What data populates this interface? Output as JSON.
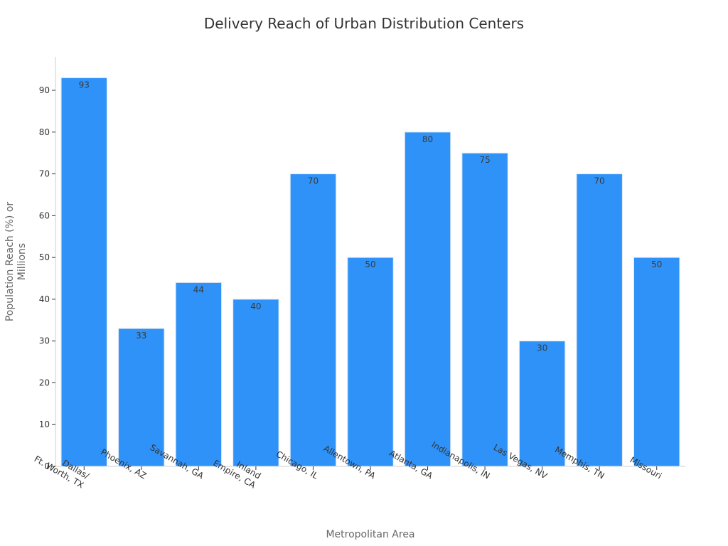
{
  "chart_data": {
    "type": "bar",
    "title": "Delivery Reach of Urban Distribution Centers",
    "xlabel": "Metropolitan Area",
    "ylabel_lines": [
      "Population Reach (%) or",
      "Millions"
    ],
    "categories": [
      [
        "Dallas/",
        "Ft. Worth, TX"
      ],
      [
        "Phoenix, AZ"
      ],
      [
        "Savannah, GA"
      ],
      [
        "Inland",
        "Empire, CA"
      ],
      [
        "Chicago, IL"
      ],
      [
        "Allentown, PA"
      ],
      [
        "Atlanta, GA"
      ],
      [
        "Indianapolis, IN"
      ],
      [
        "Las Vegas, NV"
      ],
      [
        "Memphis, TN"
      ],
      [
        "Missouri"
      ]
    ],
    "values": [
      93,
      33,
      44,
      40,
      70,
      50,
      80,
      75,
      30,
      70,
      50
    ],
    "ylim": [
      0,
      98
    ],
    "yticks": [
      0,
      10,
      20,
      30,
      40,
      50,
      60,
      70,
      80,
      90
    ],
    "grid": false,
    "bar_color": "#2f92f8"
  }
}
